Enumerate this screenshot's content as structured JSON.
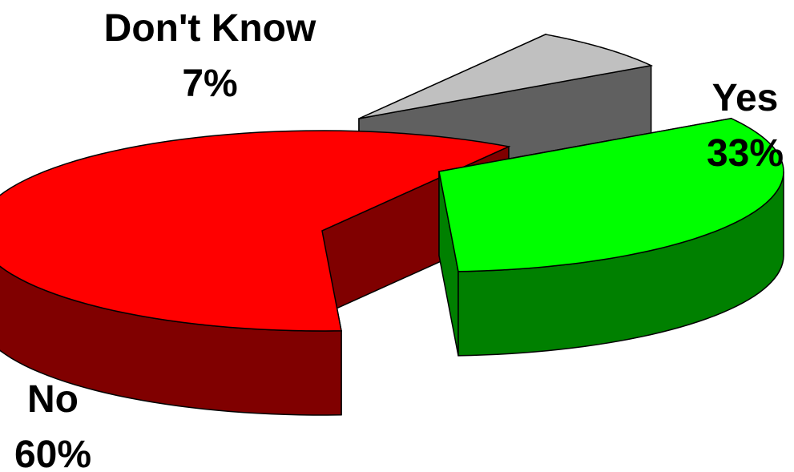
{
  "chart_data": {
    "type": "pie",
    "style": "3d-exploded",
    "slices": [
      {
        "name": "Yes",
        "value": 33,
        "value_label": "33%",
        "color": "#00ff00",
        "side_color": "#008000"
      },
      {
        "name": "No",
        "value": 60,
        "value_label": "60%",
        "color": "#ff0000",
        "side_color": "#800000"
      },
      {
        "name": "Don't Know",
        "value": 7,
        "value_label": "7%",
        "color": "#c0c0c0",
        "side_color": "#606060"
      }
    ],
    "legend": "none",
    "data_labels": "name and percent"
  }
}
